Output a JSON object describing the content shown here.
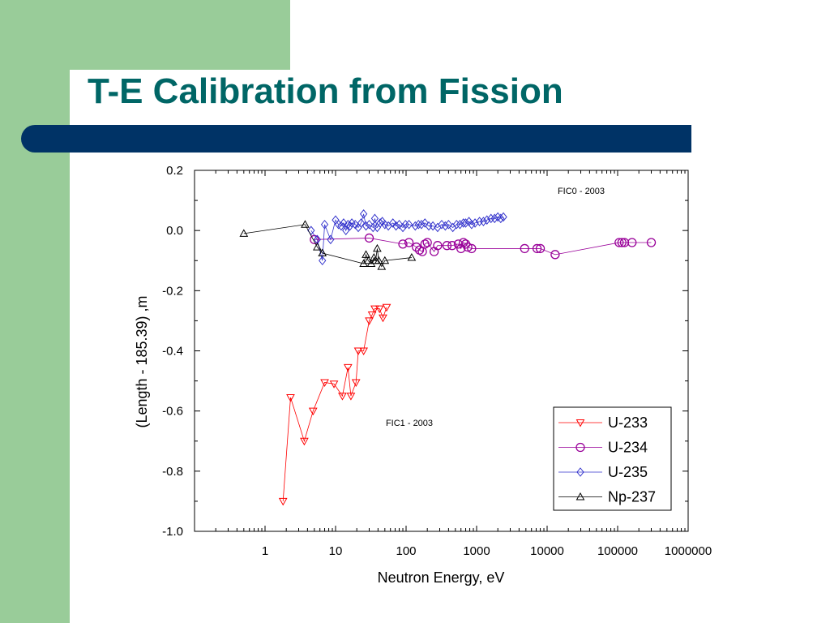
{
  "slide": {
    "title": "T-E Calibration from Fission",
    "colors": {
      "title": "#006666",
      "bar": "#003366",
      "side": "#99cc99"
    }
  },
  "chart_data": {
    "type": "scatter",
    "title": "",
    "xlabel": "Neutron Energy, eV",
    "ylabel": "(Length - 185.39) ,m",
    "x_scale": "log",
    "xlim": [
      0.1,
      1000000
    ],
    "ylim": [
      -1.0,
      0.2
    ],
    "x_ticks": [
      1,
      10,
      100,
      1000,
      10000,
      100000,
      1000000
    ],
    "x_tick_labels": [
      "1",
      "10",
      "100",
      "1000",
      "10000",
      "100000",
      "1000000"
    ],
    "y_ticks": [
      0.2,
      0.0,
      -0.2,
      -0.4,
      -0.6,
      -0.8,
      -1.0
    ],
    "y_tick_labels": [
      "0.2",
      "0.0",
      "-0.2",
      "-0.4",
      "-0.6",
      "-0.8",
      "-1.0"
    ],
    "legend_position": "bottom-right",
    "annotations": [
      "FIC0 - 2003",
      "FIC1 - 2003"
    ],
    "series": [
      {
        "name": "U-233",
        "color": "#ff0000",
        "marker": "triangle-down",
        "points": [
          [
            1.8,
            -0.9
          ],
          [
            2.3,
            -0.555
          ],
          [
            3.6,
            -0.7
          ],
          [
            4.8,
            -0.6
          ],
          [
            7,
            -0.505
          ],
          [
            9.5,
            -0.51
          ],
          [
            12.5,
            -0.55
          ],
          [
            15,
            -0.455
          ],
          [
            16.5,
            -0.55
          ],
          [
            19.5,
            -0.505
          ],
          [
            21,
            -0.4
          ],
          [
            25,
            -0.4
          ],
          [
            30,
            -0.3
          ],
          [
            33,
            -0.28
          ],
          [
            36,
            -0.26
          ],
          [
            42,
            -0.26
          ],
          [
            47,
            -0.29
          ],
          [
            53,
            -0.255
          ]
        ]
      },
      {
        "name": "U-234",
        "color": "#990099",
        "marker": "circle",
        "points": [
          [
            5,
            -0.03
          ],
          [
            30,
            -0.025
          ],
          [
            90,
            -0.045
          ],
          [
            110,
            -0.04
          ],
          [
            140,
            -0.055
          ],
          [
            155,
            -0.065
          ],
          [
            170,
            -0.07
          ],
          [
            185,
            -0.045
          ],
          [
            200,
            -0.04
          ],
          [
            250,
            -0.07
          ],
          [
            280,
            -0.05
          ],
          [
            380,
            -0.05
          ],
          [
            450,
            -0.05
          ],
          [
            550,
            -0.045
          ],
          [
            600,
            -0.06
          ],
          [
            650,
            -0.04
          ],
          [
            700,
            -0.045
          ],
          [
            750,
            -0.055
          ],
          [
            850,
            -0.06
          ],
          [
            4800,
            -0.06
          ],
          [
            7200,
            -0.06
          ],
          [
            8000,
            -0.06
          ],
          [
            13000,
            -0.08
          ],
          [
            105000,
            -0.04
          ],
          [
            115000,
            -0.04
          ],
          [
            125000,
            -0.04
          ],
          [
            160000,
            -0.04
          ],
          [
            300000,
            -0.04
          ]
        ]
      },
      {
        "name": "U-235",
        "color": "#3333cc",
        "marker": "diamond",
        "points": [
          [
            4.5,
            0.0
          ],
          [
            5.5,
            -0.03
          ],
          [
            6.5,
            -0.1
          ],
          [
            7,
            0.02
          ],
          [
            8.5,
            -0.03
          ],
          [
            10,
            0.035
          ],
          [
            11,
            0.02
          ],
          [
            12,
            0.015
          ],
          [
            13,
            0.025
          ],
          [
            14,
            0.0
          ],
          [
            15,
            0.02
          ],
          [
            16,
            0.015
          ],
          [
            17,
            0.025
          ],
          [
            19,
            0.02
          ],
          [
            21,
            0.01
          ],
          [
            23,
            0.025
          ],
          [
            25,
            0.055
          ],
          [
            27,
            0.015
          ],
          [
            30,
            0.02
          ],
          [
            34,
            0.01
          ],
          [
            36,
            0.04
          ],
          [
            39,
            0.01
          ],
          [
            43,
            0.025
          ],
          [
            46,
            0.03
          ],
          [
            50,
            0.02
          ],
          [
            56,
            0.015
          ],
          [
            65,
            0.025
          ],
          [
            72,
            0.015
          ],
          [
            80,
            0.02
          ],
          [
            90,
            0.01
          ],
          [
            98,
            0.02
          ],
          [
            110,
            0.02
          ],
          [
            135,
            0.015
          ],
          [
            150,
            0.02
          ],
          [
            165,
            0.02
          ],
          [
            185,
            0.025
          ],
          [
            210,
            0.015
          ],
          [
            240,
            0.015
          ],
          [
            280,
            0.01
          ],
          [
            320,
            0.02
          ],
          [
            360,
            0.015
          ],
          [
            400,
            0.02
          ],
          [
            460,
            0.01
          ],
          [
            520,
            0.02
          ],
          [
            580,
            0.02
          ],
          [
            650,
            0.025
          ],
          [
            700,
            0.025
          ],
          [
            780,
            0.03
          ],
          [
            850,
            0.02
          ],
          [
            950,
            0.025
          ],
          [
            1100,
            0.03
          ],
          [
            1250,
            0.03
          ],
          [
            1400,
            0.035
          ],
          [
            1600,
            0.04
          ],
          [
            1800,
            0.04
          ],
          [
            2000,
            0.045
          ],
          [
            2200,
            0.04
          ],
          [
            2400,
            0.045
          ]
        ]
      },
      {
        "name": "Np-237",
        "color": "#000000",
        "marker": "triangle-up",
        "points": [
          [
            0.5,
            -0.01
          ],
          [
            3.7,
            0.02
          ],
          [
            5.5,
            -0.055
          ],
          [
            6.5,
            -0.075
          ],
          [
            25,
            -0.11
          ],
          [
            27,
            -0.08
          ],
          [
            29,
            -0.1
          ],
          [
            32,
            -0.11
          ],
          [
            35,
            -0.09
          ],
          [
            37,
            -0.1
          ],
          [
            39,
            -0.06
          ],
          [
            41,
            -0.1
          ],
          [
            45,
            -0.12
          ],
          [
            50,
            -0.1
          ],
          [
            120,
            -0.09
          ]
        ]
      }
    ]
  }
}
